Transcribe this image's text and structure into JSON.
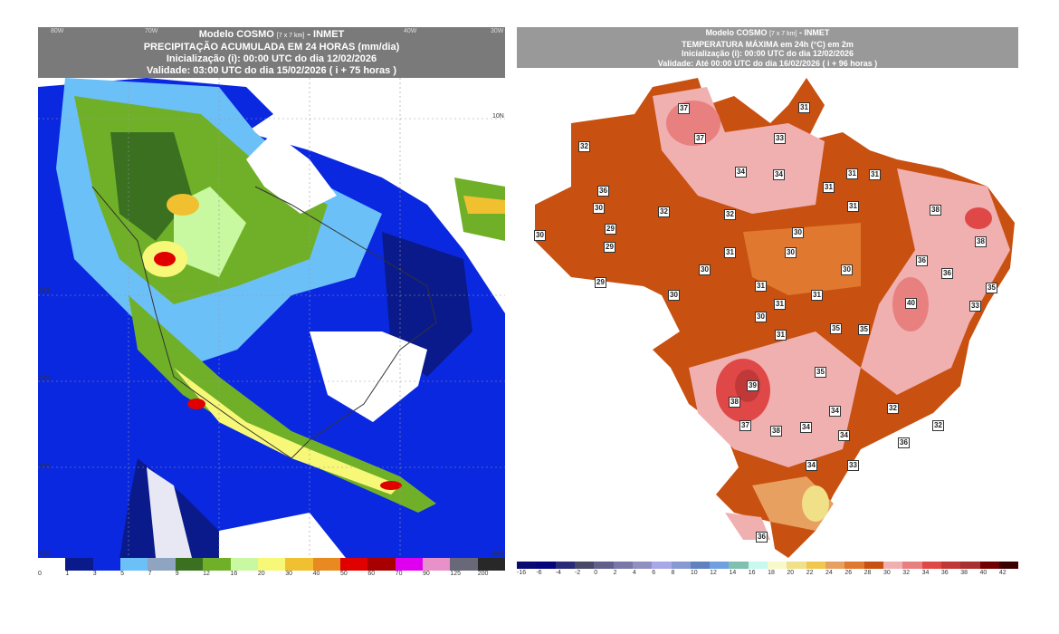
{
  "precip": {
    "title_line1": "Modelo COSMO",
    "title_res": "[7 x 7 km]",
    "title_org": "- INMET",
    "title_line2": "PRECIPITAÇÃO ACUMULADA EM 24 HORAS (mm/dia)",
    "title_line3": "Inicialização (i): 00:00 UTC do dia 12/02/2026",
    "title_line4": "Validade: 03:00 UTC do dia 15/02/2026 ( i + 75 horas )",
    "lon_labels": [
      "80W",
      "70W",
      "40W",
      "30W"
    ],
    "lat_labels": [
      "10N",
      "10S",
      "20S",
      "30S",
      "40S",
      "40S"
    ],
    "colorbar": {
      "labels": [
        "0",
        "1",
        "3",
        "5",
        "7",
        "9",
        "12",
        "16",
        "20",
        "30",
        "40",
        "50",
        "60",
        "70",
        "90",
        "125",
        "200"
      ],
      "colors": [
        "#ffffff",
        "#0a1a8a",
        "#0a28e0",
        "#6cc0f8",
        "#8ea4c0",
        "#3a7020",
        "#70b028",
        "#c8f8a0",
        "#f8f878",
        "#f0c030",
        "#e88a20",
        "#e00000",
        "#a80000",
        "#e000f0",
        "#e890c8",
        "#686878",
        "#282828"
      ]
    }
  },
  "temp": {
    "title_line1": "Modelo COSMO",
    "title_res": "[7 x 7 km]",
    "title_org": "- INMET",
    "title_line2": "TEMPERATURA MÁXIMA em 24h (°C) em 2m",
    "title_line3": "Inicialização (i): 00:00 UTC do dia 12/02/2026",
    "title_line4": "Validade: Até 00:00 UTC do dia 16/02/2026 ( i + 96 horas )",
    "colorbar": {
      "labels": [
        "-16",
        "-6",
        "-4",
        "-2",
        "0",
        "2",
        "4",
        "6",
        "8",
        "10",
        "12",
        "14",
        "16",
        "18",
        "20",
        "22",
        "24",
        "26",
        "28",
        "30",
        "32",
        "34",
        "36",
        "38",
        "40",
        "42"
      ],
      "colors": [
        "#0a0a70",
        "#06067a",
        "#2a2a78",
        "#484868",
        "#60608a",
        "#7878a8",
        "#9090c0",
        "#a8a8e8",
        "#8898d0",
        "#6080c0",
        "#70a0e0",
        "#80c0b0",
        "#c8f8f0",
        "#f8f8c8",
        "#f0e088",
        "#f0c850",
        "#e8a060",
        "#e07830",
        "#c85010",
        "#f0b0b0",
        "#e88080",
        "#e04848",
        "#c03838",
        "#a83030",
        "#700000",
        "#3a0000"
      ]
    },
    "max_labels": [
      37,
      37,
      32,
      33,
      31,
      34,
      34,
      31,
      31,
      31,
      31,
      36,
      30,
      29,
      29,
      30,
      32,
      32,
      30,
      31,
      30,
      30,
      30,
      29,
      30,
      31,
      31,
      31,
      30,
      31,
      35,
      35,
      38,
      38,
      36,
      36,
      35,
      40,
      33,
      35,
      39,
      38,
      37,
      38,
      34,
      34,
      34,
      32,
      32,
      36,
      34,
      33,
      36
    ]
  }
}
